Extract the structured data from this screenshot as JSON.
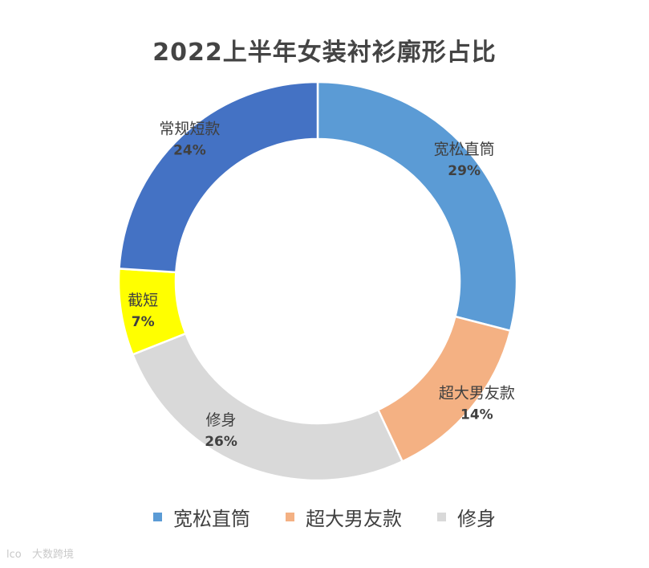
{
  "chart_data": {
    "type": "pie",
    "variant": "donut",
    "title": "2022上半年女装衬衫廓形占比",
    "slices": [
      {
        "label": "宽松直筒",
        "value": 29,
        "display": "29%",
        "color": "#5B9BD5"
      },
      {
        "label": "超大男友款",
        "value": 14,
        "display": "14%",
        "color": "#F4B183"
      },
      {
        "label": "修身",
        "value": 26,
        "display": "26%",
        "color": "#D9D9D9"
      },
      {
        "label": "截短",
        "value": 7,
        "display": "7%",
        "color": "#FFFF00"
      },
      {
        "label": "常规短款",
        "value": 24,
        "display": "24%",
        "color": "#4472C4"
      }
    ],
    "legend": {
      "placement": "bottom",
      "entries": [
        {
          "label": "宽松直筒",
          "color": "#5B9BD5"
        },
        {
          "label": "超大男友款",
          "color": "#F4B183"
        },
        {
          "label": "修身",
          "color": "#D9D9D9"
        }
      ]
    }
  },
  "watermark": {
    "text": "大数跨境"
  }
}
